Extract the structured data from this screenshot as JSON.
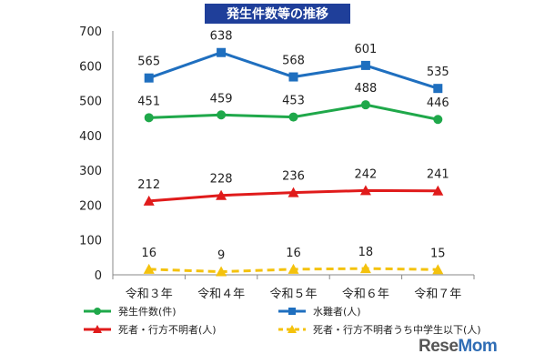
{
  "title": "発生件数等の推移",
  "logo": {
    "prefix": "Rese",
    "suffix": "Mom",
    "color_prefix": "#555555",
    "color_suffix": "#2f6db5"
  },
  "chart_data": {
    "type": "line",
    "categories": [
      "令和３年",
      "令和４年",
      "令和５年",
      "令和６年",
      "令和７年"
    ],
    "ylim": [
      0,
      700
    ],
    "yticks": [
      0,
      100,
      200,
      300,
      400,
      500,
      600,
      700
    ],
    "grid": false,
    "legend_position": "bottom",
    "series": [
      {
        "name": "発生件数(件)",
        "values": [
          451,
          459,
          453,
          488,
          446
        ],
        "color": "#1fa84a",
        "marker": "circle",
        "dashed": false
      },
      {
        "name": "水難者(人)",
        "values": [
          565,
          638,
          568,
          601,
          535
        ],
        "color": "#1f6fbf",
        "marker": "square",
        "dashed": false
      },
      {
        "name": "死者・行方不明者(人)",
        "values": [
          212,
          228,
          236,
          242,
          241
        ],
        "color": "#e01b1b",
        "marker": "triangle",
        "dashed": false
      },
      {
        "name": "死者・行方不明者うち中学生以下(人)",
        "values": [
          16,
          9,
          16,
          18,
          15
        ],
        "color": "#f4c20d",
        "marker": "triangle",
        "dashed": true
      }
    ]
  }
}
